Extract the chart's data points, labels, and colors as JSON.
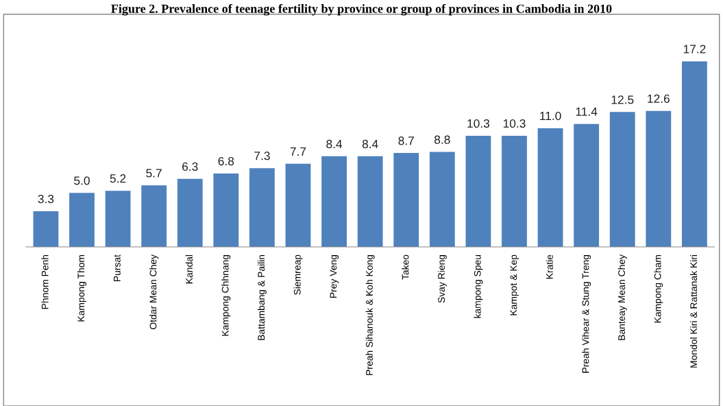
{
  "chart_data": {
    "type": "bar",
    "title": "Figure 2. Prevalence of teenage fertility by province or group of provinces in Cambodia in 2010",
    "categories": [
      "Phnom Penh",
      "Kampong Thom",
      "Pursat",
      "Otdar Mean Chey",
      "Kandal",
      "Kampong Chhnang",
      "Battambang & Pailin",
      "Siemreap",
      "Prey Veng",
      "Preah Sihanouk & Koh Kong",
      "Takeo",
      "Svay Rieng",
      "kampong Speu",
      "Kampot & Kep",
      "Kratie",
      "Preah Vihear & Stung Treng",
      "Banteay Mean Chey",
      "Kampong Cham",
      "Mondol Kiri & Rattanak Kiri"
    ],
    "values": [
      3.3,
      5.0,
      5.2,
      5.7,
      6.3,
      6.8,
      7.3,
      7.7,
      8.4,
      8.4,
      8.7,
      8.8,
      10.3,
      10.3,
      11.0,
      11.4,
      12.5,
      12.6,
      17.2
    ],
    "value_labels": [
      "3.3",
      "5.0",
      "5.2",
      "5.7",
      "6.3",
      "6.8",
      "7.3",
      "7.7",
      "8.4",
      "8.4",
      "8.7",
      "8.8",
      "10.3",
      "10.3",
      "11.0",
      "11.4",
      "12.5",
      "12.6",
      "17.2"
    ],
    "color": "#4f81bd",
    "grid": false,
    "legend": false
  }
}
